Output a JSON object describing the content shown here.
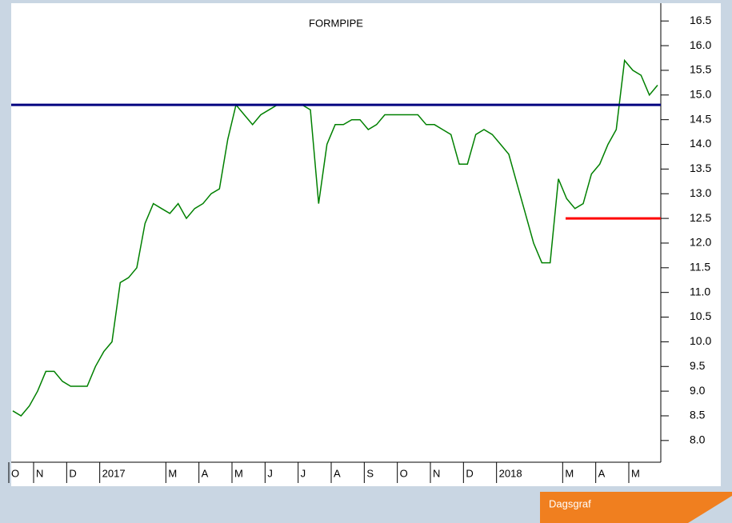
{
  "chart_data": {
    "type": "line",
    "title": "FORMPIPE",
    "categories": [
      "O",
      null,
      null,
      "N",
      null,
      null,
      null,
      "D",
      null,
      null,
      null,
      "2017",
      null,
      null,
      null,
      null,
      null,
      null,
      null,
      "M",
      null,
      null,
      null,
      "A",
      null,
      null,
      null,
      "M",
      null,
      null,
      null,
      "J",
      null,
      null,
      null,
      "J",
      null,
      null,
      null,
      "A",
      null,
      null,
      null,
      "S",
      null,
      null,
      null,
      "O",
      null,
      null,
      null,
      "N",
      null,
      null,
      null,
      "D",
      null,
      null,
      null,
      "2018",
      null,
      null,
      null,
      null,
      null,
      null,
      null,
      "M",
      null,
      null,
      null,
      "A",
      null,
      null,
      null,
      "M",
      null,
      null,
      null
    ],
    "series": [
      {
        "name": "FORMPIPE",
        "color": "#008000",
        "values": [
          8.6,
          8.5,
          8.7,
          9.0,
          9.4,
          9.4,
          9.2,
          9.1,
          9.1,
          9.1,
          9.5,
          9.8,
          10.0,
          11.2,
          11.3,
          11.5,
          12.4,
          12.8,
          12.7,
          12.6,
          12.8,
          12.5,
          12.7,
          12.8,
          13.0,
          13.1,
          14.1,
          14.8,
          14.6,
          14.4,
          14.6,
          14.7,
          14.8,
          14.8,
          14.8,
          14.8,
          14.7,
          12.8,
          14.0,
          14.4,
          14.4,
          14.5,
          14.5,
          14.3,
          14.4,
          14.6,
          14.6,
          14.6,
          14.6,
          14.6,
          14.4,
          14.4,
          14.3,
          14.2,
          13.6,
          13.6,
          14.2,
          14.3,
          14.2,
          14.0,
          13.8,
          13.2,
          12.6,
          12.0,
          11.6,
          11.6,
          13.3,
          12.9,
          12.7,
          12.8,
          13.4,
          13.6,
          14.0,
          14.3,
          15.7,
          15.5,
          15.4,
          15.0,
          15.2
        ]
      }
    ],
    "ylim": [
      7.56,
      16.86
    ],
    "yticks": [
      {
        "value": 8,
        "label": "8.0"
      },
      8.5,
      {
        "value": 9,
        "label": "9.0"
      },
      9.5,
      {
        "value": 10,
        "label": "10.0"
      },
      10.5,
      {
        "value": 11,
        "label": "11.0"
      },
      11.5,
      {
        "value": 12,
        "label": "12.0"
      },
      12.5,
      {
        "value": 13,
        "label": "13.0"
      },
      13.5,
      {
        "value": 14,
        "label": "14.0"
      },
      14.5,
      {
        "value": 15,
        "label": "15.0"
      },
      15.5,
      {
        "value": 16,
        "label": "16.0"
      },
      16.5
    ],
    "hlines": [
      {
        "value": 14.8,
        "color": "#000080"
      },
      {
        "value": 12.5,
        "color": "#ff0000"
      }
    ],
    "footer_tab": "Dagsgraf"
  }
}
